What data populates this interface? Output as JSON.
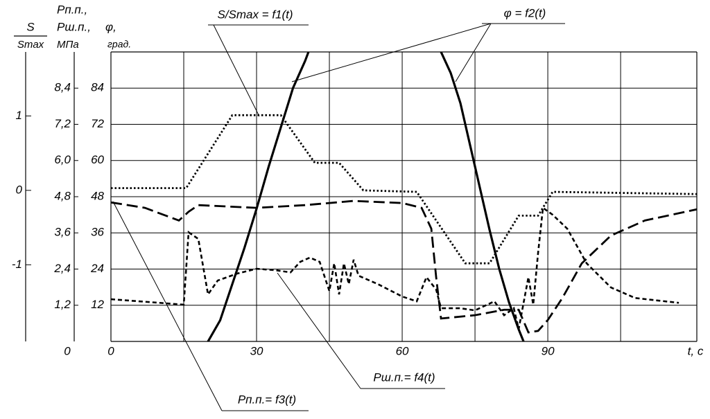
{
  "chart_data": {
    "type": "line",
    "xlim": [
      0,
      120.7
    ],
    "xticks": [
      0,
      30,
      60,
      90
    ],
    "xgrid": [
      15,
      30,
      45,
      60,
      75,
      90,
      105
    ],
    "xlabel": "t, c",
    "ylim": [
      0,
      96
    ],
    "yticks": [
      12,
      24,
      36,
      48,
      60,
      72,
      84
    ],
    "ylabel": [
      "φ,",
      "град."
    ],
    "y2lim": [
      0,
      9.6
    ],
    "y2ticks": [
      0,
      {
        "value": 1.2,
        "label": "1,2"
      },
      {
        "value": 2.4,
        "label": "2,4"
      },
      {
        "value": 3.6,
        "label": "3,6"
      },
      {
        "value": 4.8,
        "label": "4,8"
      },
      {
        "value": 6.0,
        "label": "6,0"
      },
      {
        "value": 7.2,
        "label": "7,2"
      },
      {
        "value": 8.4,
        "label": "8,4"
      }
    ],
    "y2label": [
      "Рп.п.,",
      "Рш.п.,",
      "МПа"
    ],
    "y3lim": [
      -2.03,
      1.86
    ],
    "y3ticks": [
      -1,
      0,
      1
    ],
    "y3label": [
      "S",
      "Smax"
    ],
    "grid": true,
    "series": [
      {
        "name": "S/Smax = f1(t)",
        "color": "#000000",
        "dash": "dotted",
        "axis": "y3",
        "x": [
          0,
          15.5,
          25,
          35,
          42,
          47,
          52,
          63,
          73,
          78,
          84,
          88,
          91,
          120.7
        ],
        "values": [
          0.03,
          0.03,
          1.01,
          1.01,
          0.37,
          0.37,
          0.0,
          -0.02,
          -0.98,
          -0.98,
          -0.34,
          -0.34,
          -0.02,
          -0.05
        ]
      },
      {
        "name": "φ = f2(t)",
        "color": "#000000",
        "dash": "solid",
        "axis": "y",
        "x": [
          20,
          22.5,
          25,
          27.5,
          30,
          32.5,
          35,
          37.5,
          40,
          40.7,
          55,
          68,
          70,
          72,
          74,
          76,
          78,
          80,
          82,
          84,
          85
        ],
        "values": [
          0,
          7,
          19,
          31,
          44,
          58,
          71,
          84,
          93,
          96,
          null,
          96,
          89,
          79,
          65,
          51,
          37,
          24,
          13,
          4,
          0
        ]
      },
      {
        "name": "Рп.п.= f3(t)",
        "color": "#000000",
        "dash": "long-dash",
        "axis": "y2",
        "x": [
          0,
          7,
          14,
          16,
          18,
          30,
          40,
          50,
          60,
          64,
          66,
          67,
          68,
          75,
          81,
          84,
          86,
          88,
          90,
          93,
          97,
          103,
          110,
          120.7
        ],
        "values": [
          4.61,
          4.43,
          4.01,
          4.3,
          4.52,
          4.43,
          4.52,
          4.66,
          4.59,
          4.43,
          3.74,
          2.13,
          0.76,
          0.87,
          1.05,
          1.05,
          0.3,
          0.35,
          0.71,
          1.44,
          2.59,
          3.51,
          4.01,
          4.38
        ]
      },
      {
        "name": "Рш.п.= f4(t)",
        "color": "#000000",
        "dash": "short-dash",
        "axis": "y2",
        "x": [
          0,
          15,
          16,
          18,
          20,
          22,
          26,
          30,
          34,
          37,
          39,
          41,
          43,
          45,
          46,
          47,
          48,
          49,
          50,
          51,
          55,
          60,
          63,
          65,
          67,
          68,
          72,
          75,
          79,
          81,
          83,
          84,
          86,
          87,
          88,
          89,
          91,
          94,
          98,
          103,
          108,
          117
        ],
        "values": [
          1.4,
          1.22,
          3.62,
          3.4,
          1.56,
          2.02,
          2.25,
          2.41,
          2.36,
          2.29,
          2.64,
          2.78,
          2.64,
          1.67,
          2.59,
          1.56,
          2.59,
          1.9,
          2.71,
          2.18,
          1.9,
          1.49,
          1.33,
          2.13,
          1.72,
          1.1,
          1.1,
          1.03,
          1.33,
          0.87,
          1.1,
          0.41,
          2.13,
          1.22,
          2.94,
          4.43,
          4.2,
          3.74,
          2.59,
          1.79,
          1.44,
          1.28
        ]
      }
    ]
  }
}
